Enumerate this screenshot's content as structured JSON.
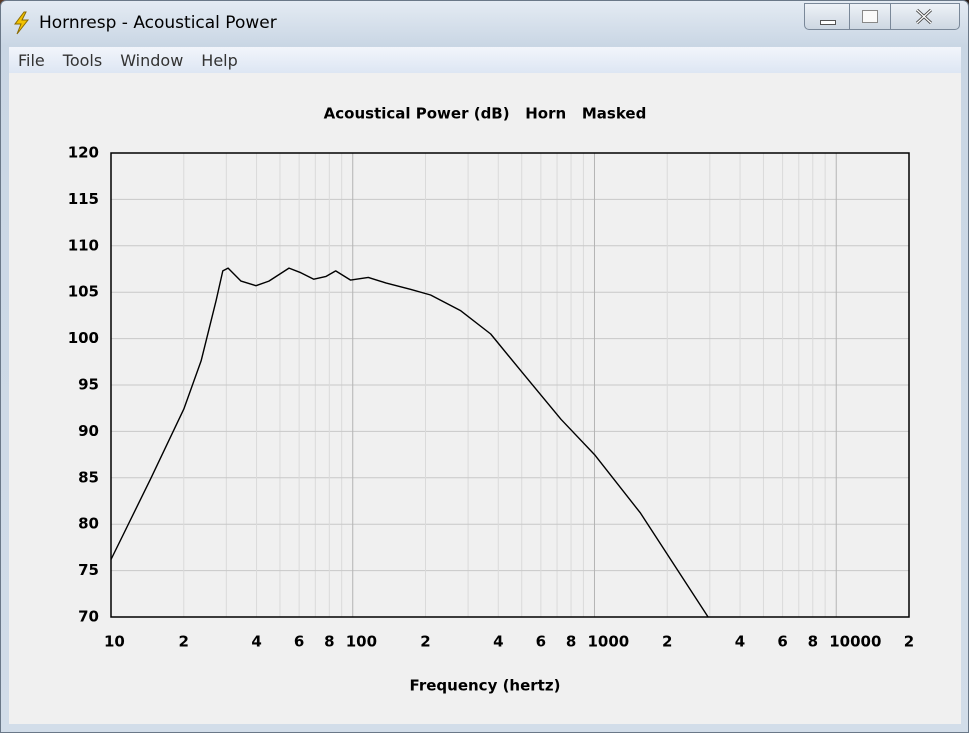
{
  "window": {
    "title": "Hornresp - Acoustical Power",
    "menu": [
      "File",
      "Tools",
      "Window",
      "Help"
    ]
  },
  "chart_data": {
    "type": "line",
    "title": "Acoustical Power (dB)   Horn   Masked",
    "xlabel": "Frequency (hertz)",
    "log_x": true,
    "grid": true,
    "color": "#000000",
    "xlim": [
      10,
      20000
    ],
    "ylim": [
      70,
      120
    ],
    "xticks": [
      10,
      {
        "value": 20,
        "label": "2"
      },
      {
        "value": 40,
        "label": "4"
      },
      {
        "value": 60,
        "label": "6"
      },
      {
        "value": 80,
        "label": "8"
      },
      100,
      {
        "value": 200,
        "label": "2"
      },
      {
        "value": 400,
        "label": "4"
      },
      {
        "value": 600,
        "label": "6"
      },
      {
        "value": 800,
        "label": "8"
      },
      1000,
      {
        "value": 2000,
        "label": "2"
      },
      {
        "value": 4000,
        "label": "4"
      },
      {
        "value": 6000,
        "label": "6"
      },
      {
        "value": 8000,
        "label": "8"
      },
      10000,
      {
        "value": 20000,
        "label": "2"
      }
    ],
    "xminor_ticks": [
      30,
      50,
      70,
      90,
      300,
      500,
      700,
      900,
      3000,
      5000,
      7000,
      9000
    ],
    "yticks": [
      70,
      75,
      80,
      85,
      90,
      95,
      100,
      105,
      110,
      115,
      120
    ],
    "x": [
      10,
      14.6,
      20,
      23.6,
      27.2,
      29,
      30.5,
      34.5,
      39.8,
      45,
      54.5,
      61,
      69,
      77.6,
      85,
      98,
      116,
      137,
      174,
      210,
      280,
      372,
      497,
      727,
      1000,
      1550,
      2950
    ],
    "values": [
      76.2,
      84.9,
      92.4,
      97.6,
      104.1,
      107.3,
      107.6,
      106.2,
      105.7,
      106.2,
      107.6,
      107.1,
      106.4,
      106.7,
      107.3,
      106.3,
      106.6,
      106,
      105.3,
      104.7,
      103,
      100.5,
      96.5,
      91.3,
      87.5,
      81.2,
      70
    ]
  }
}
